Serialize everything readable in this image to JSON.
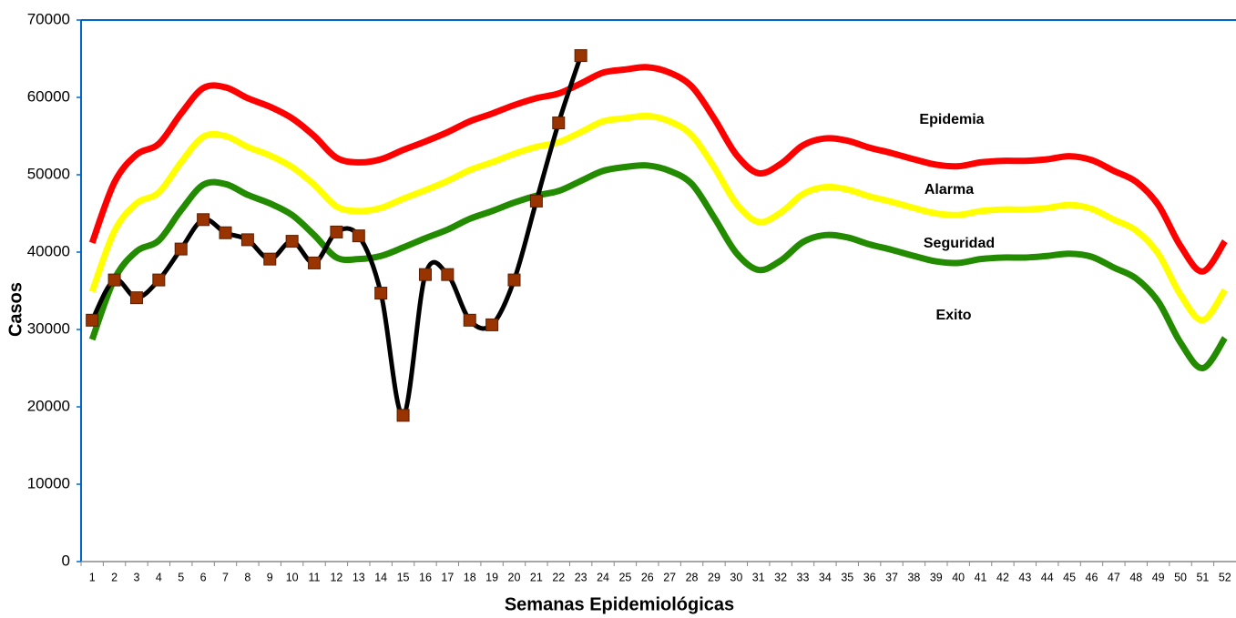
{
  "chart_data": {
    "type": "line",
    "x_label": "Semanas Epidemiológicas",
    "y_label": "Casos",
    "categories": [
      "1",
      "2",
      "3",
      "4",
      "5",
      "6",
      "7",
      "8",
      "9",
      "10",
      "11",
      "12",
      "13",
      "14",
      "15",
      "16",
      "17",
      "18",
      "19",
      "20",
      "21",
      "22",
      "23",
      "24",
      "25",
      "26",
      "27",
      "28",
      "29",
      "30",
      "31",
      "32",
      "33",
      "34",
      "35",
      "36",
      "37",
      "38",
      "39",
      "40",
      "41",
      "42",
      "43",
      "44",
      "45",
      "46",
      "47",
      "48",
      "49",
      "50",
      "51",
      "52"
    ],
    "ylim": [
      0,
      70000
    ],
    "yticks": [
      0,
      10000,
      20000,
      30000,
      40000,
      50000,
      60000,
      70000
    ],
    "series": [
      {
        "name": "Epidemia",
        "color": "#ff0000",
        "values": [
          41200,
          49000,
          52600,
          54000,
          57900,
          61200,
          61300,
          59900,
          58800,
          57300,
          55000,
          52200,
          51600,
          52000,
          53200,
          54300,
          55500,
          56900,
          57900,
          59000,
          59900,
          60500,
          61800,
          63200,
          63600,
          63900,
          63200,
          61400,
          57300,
          52600,
          50200,
          51400,
          53800,
          54700,
          54400,
          53500,
          52800,
          52000,
          51300,
          51100,
          51600,
          51800,
          51800,
          52000,
          52400,
          51900,
          50500,
          49100,
          46100,
          40800,
          37500,
          41400
        ]
      },
      {
        "name": "Alarma",
        "color": "#ffff00",
        "values": [
          34900,
          42700,
          46300,
          47700,
          51600,
          54900,
          55000,
          53600,
          52500,
          51000,
          48700,
          45900,
          45300,
          45700,
          46900,
          48000,
          49200,
          50600,
          51600,
          52700,
          53600,
          54200,
          55500,
          56900,
          57300,
          57600,
          56900,
          55100,
          51000,
          46300,
          43900,
          45100,
          47500,
          48400,
          48100,
          47200,
          46500,
          45700,
          45000,
          44800,
          45300,
          45500,
          45500,
          45700,
          46100,
          45600,
          44200,
          42800,
          39800,
          34500,
          31200,
          35100
        ]
      },
      {
        "name": "Seguridad",
        "color": "#228b00",
        "values": [
          28700,
          36500,
          40100,
          41500,
          45400,
          48700,
          48800,
          47400,
          46300,
          44800,
          42200,
          39300,
          39100,
          39500,
          40600,
          41800,
          42900,
          44300,
          45300,
          46400,
          47300,
          47900,
          49200,
          50500,
          51000,
          51200,
          50500,
          48800,
          44500,
          39900,
          37700,
          38900,
          41300,
          42200,
          41900,
          41000,
          40300,
          39500,
          38800,
          38600,
          39100,
          39300,
          39300,
          39500,
          39800,
          39400,
          38000,
          36600,
          33600,
          28300,
          25000,
          28900
        ]
      },
      {
        "color": "#000000",
        "marker_color": "#993300",
        "values": [
          31200,
          36400,
          34100,
          36400,
          40400,
          44200,
          42500,
          41600,
          39100,
          41400,
          38600,
          42600,
          42100,
          34700,
          18900,
          37100,
          37100,
          31200,
          30600,
          36400,
          46600,
          56700,
          65400,
          null,
          null,
          null,
          null,
          null,
          null,
          null,
          null,
          null,
          null,
          null,
          null,
          null,
          null,
          null,
          null,
          null,
          null,
          null,
          null,
          null,
          null,
          null,
          null,
          null,
          null,
          null,
          null,
          null
        ]
      }
    ],
    "annotations": [
      "Epidemia",
      "Alarma",
      "Seguridad",
      "Exito"
    ]
  }
}
